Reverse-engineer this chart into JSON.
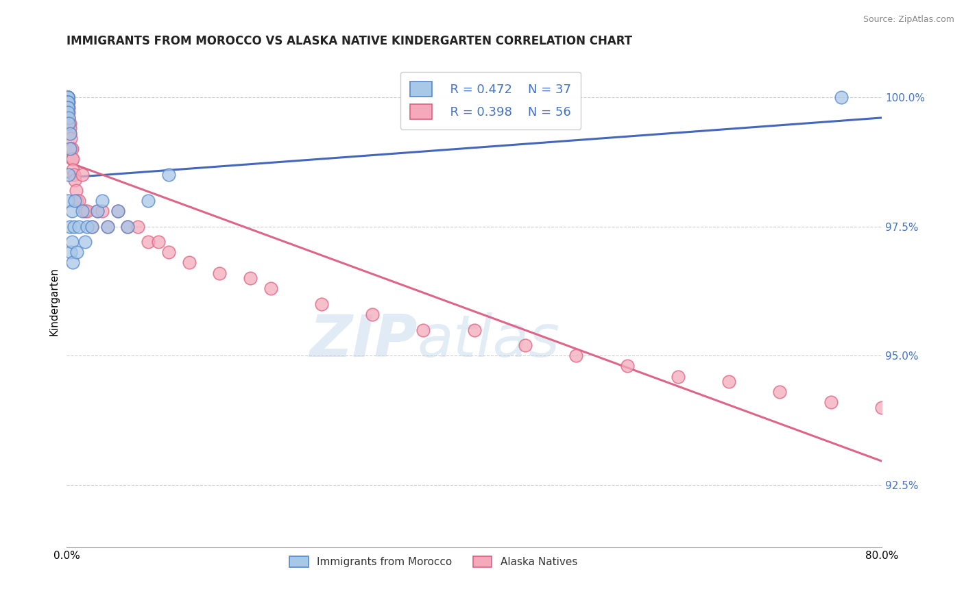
{
  "title": "IMMIGRANTS FROM MOROCCO VS ALASKA NATIVE KINDERGARTEN CORRELATION CHART",
  "source": "Source: ZipAtlas.com",
  "ylabel": "Kindergarten",
  "xlim": [
    0.0,
    0.8
  ],
  "ylim": [
    0.913,
    1.008
  ],
  "xticks": [
    0.0,
    0.2,
    0.4,
    0.6,
    0.8
  ],
  "xtick_labels": [
    "0.0%",
    "",
    "",
    "",
    "80.0%"
  ],
  "yticks": [
    1.0,
    0.975,
    0.95,
    0.925
  ],
  "ytick_labels": [
    "100.0%",
    "97.5%",
    "95.0%",
    "92.5%"
  ],
  "blue_color": "#A8C8E8",
  "pink_color": "#F4AABB",
  "blue_edge_color": "#5588CC",
  "pink_edge_color": "#E06080",
  "blue_line_color": "#4466BB",
  "pink_line_color": "#DD6688",
  "legend_label_blue": "Immigrants from Morocco",
  "legend_label_pink": "Alaska Natives",
  "watermark_zip": "ZIP",
  "watermark_atlas": "atlas",
  "blue_x": [
    0.001,
    0.001,
    0.001,
    0.001,
    0.001,
    0.001,
    0.001,
    0.001,
    0.001,
    0.001,
    0.001,
    0.002,
    0.002,
    0.002,
    0.003,
    0.003,
    0.003,
    0.004,
    0.005,
    0.005,
    0.006,
    0.007,
    0.008,
    0.01,
    0.012,
    0.015,
    0.018,
    0.02,
    0.025,
    0.03,
    0.035,
    0.04,
    0.05,
    0.06,
    0.08,
    0.1,
    0.76
  ],
  "blue_y": [
    1.0,
    1.0,
    1.0,
    1.0,
    0.999,
    0.999,
    0.999,
    0.998,
    0.998,
    0.997,
    0.98,
    0.996,
    0.995,
    0.985,
    0.993,
    0.99,
    0.975,
    0.97,
    0.978,
    0.972,
    0.968,
    0.975,
    0.98,
    0.97,
    0.975,
    0.978,
    0.972,
    0.975,
    0.975,
    0.978,
    0.98,
    0.975,
    0.978,
    0.975,
    0.98,
    0.985,
    1.0
  ],
  "pink_x": [
    0.001,
    0.001,
    0.001,
    0.001,
    0.001,
    0.001,
    0.001,
    0.001,
    0.002,
    0.002,
    0.002,
    0.002,
    0.002,
    0.003,
    0.003,
    0.003,
    0.004,
    0.004,
    0.005,
    0.005,
    0.006,
    0.006,
    0.007,
    0.008,
    0.009,
    0.01,
    0.012,
    0.015,
    0.018,
    0.02,
    0.025,
    0.03,
    0.035,
    0.04,
    0.05,
    0.06,
    0.07,
    0.08,
    0.09,
    0.1,
    0.12,
    0.15,
    0.18,
    0.2,
    0.25,
    0.3,
    0.35,
    0.4,
    0.45,
    0.5,
    0.55,
    0.6,
    0.65,
    0.7,
    0.75,
    0.8
  ],
  "pink_y": [
    1.0,
    1.0,
    1.0,
    0.999,
    0.999,
    0.998,
    0.997,
    0.996,
    0.999,
    0.998,
    0.997,
    0.996,
    0.995,
    0.995,
    0.994,
    0.993,
    0.992,
    0.99,
    0.99,
    0.988,
    0.988,
    0.986,
    0.985,
    0.984,
    0.982,
    0.98,
    0.98,
    0.985,
    0.978,
    0.978,
    0.975,
    0.978,
    0.978,
    0.975,
    0.978,
    0.975,
    0.975,
    0.972,
    0.972,
    0.97,
    0.968,
    0.966,
    0.965,
    0.963,
    0.96,
    0.958,
    0.955,
    0.955,
    0.952,
    0.95,
    0.948,
    0.946,
    0.945,
    0.943,
    0.941,
    0.94
  ]
}
